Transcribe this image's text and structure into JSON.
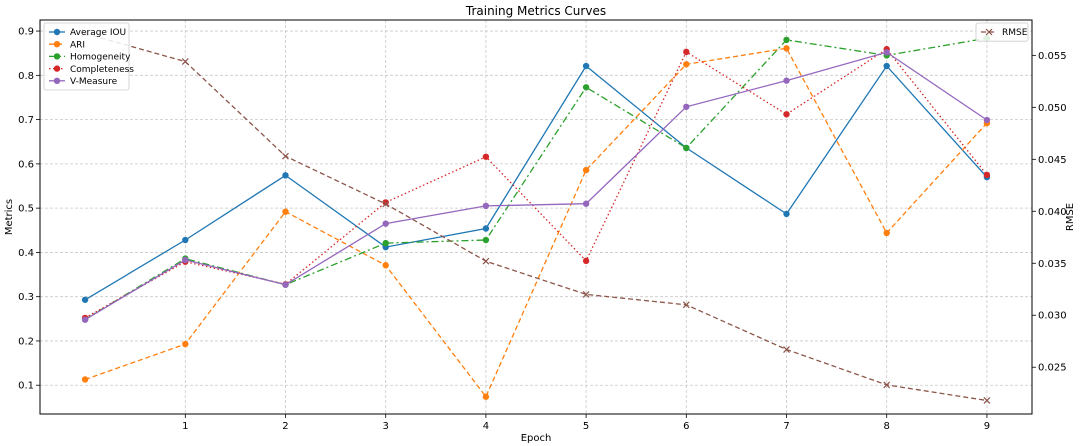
{
  "chart_data": {
    "type": "line",
    "title": "Training Metrics Curves",
    "xlabel": "Epoch",
    "ylabel": "Metrics",
    "y2label": "RMSE",
    "x": [
      0,
      1,
      2,
      3,
      4,
      5,
      6,
      7,
      8,
      9
    ],
    "x_tick_labels": [
      "1",
      "2",
      "3",
      "4",
      "5",
      "6",
      "7",
      "8",
      "9"
    ],
    "xlim": [
      -0.45,
      9.45
    ],
    "ylim": [
      0.035,
      0.925
    ],
    "y2lim": [
      0.0205,
      0.0584
    ],
    "y_ticks": [
      0.1,
      0.2,
      0.3,
      0.4,
      0.5,
      0.6,
      0.7,
      0.8,
      0.9
    ],
    "y_tick_labels": [
      "0.1",
      "0.2",
      "0.3",
      "0.4",
      "0.5",
      "0.6",
      "0.7",
      "0.8",
      "0.9"
    ],
    "y2_ticks": [
      0.025,
      0.03,
      0.035,
      0.04,
      0.045,
      0.05,
      0.055
    ],
    "y2_tick_labels": [
      "0.025",
      "0.030",
      "0.035",
      "0.040",
      "0.045",
      "0.050",
      "0.055"
    ],
    "grid": true,
    "legend_left": "top-left",
    "legend_right": "top-right",
    "series": [
      {
        "name": "Average IOU",
        "color": "#1f77b4",
        "dash": "solid",
        "marker": "circle",
        "axis": "left",
        "values": [
          0.293,
          0.428,
          0.574,
          0.412,
          0.454,
          0.821,
          0.636,
          0.487,
          0.821,
          0.57
        ]
      },
      {
        "name": "ARI",
        "color": "#ff7f0e",
        "dash": "dashed",
        "marker": "circle",
        "axis": "left",
        "values": [
          0.113,
          0.193,
          0.492,
          0.371,
          0.074,
          0.586,
          0.825,
          0.861,
          0.444,
          0.692
        ]
      },
      {
        "name": "Homogeneity",
        "color": "#2ca02c",
        "dash": "dashdot",
        "marker": "circle",
        "axis": "left",
        "values": [
          0.249,
          0.386,
          0.327,
          0.421,
          0.428,
          0.773,
          0.636,
          0.88,
          0.845,
          0.884
        ]
      },
      {
        "name": "Completeness",
        "color": "#d62728",
        "dash": "dotted",
        "marker": "circle",
        "axis": "left",
        "values": [
          0.252,
          0.379,
          0.328,
          0.513,
          0.616,
          0.381,
          0.853,
          0.712,
          0.859,
          0.575
        ]
      },
      {
        "name": "V-Measure",
        "color": "#9467bd",
        "dash": "solid",
        "marker": "circle",
        "axis": "left",
        "values": [
          0.248,
          0.383,
          0.327,
          0.465,
          0.505,
          0.51,
          0.729,
          0.788,
          0.852,
          0.699
        ]
      },
      {
        "name": "RMSE",
        "color": "#8c564b",
        "dash": "dashed",
        "marker": "x",
        "axis": "right",
        "values": [
          0.0571,
          0.0544,
          0.0453,
          0.0407,
          0.0352,
          0.032,
          0.031,
          0.0267,
          0.0233,
          0.0218
        ]
      }
    ]
  }
}
